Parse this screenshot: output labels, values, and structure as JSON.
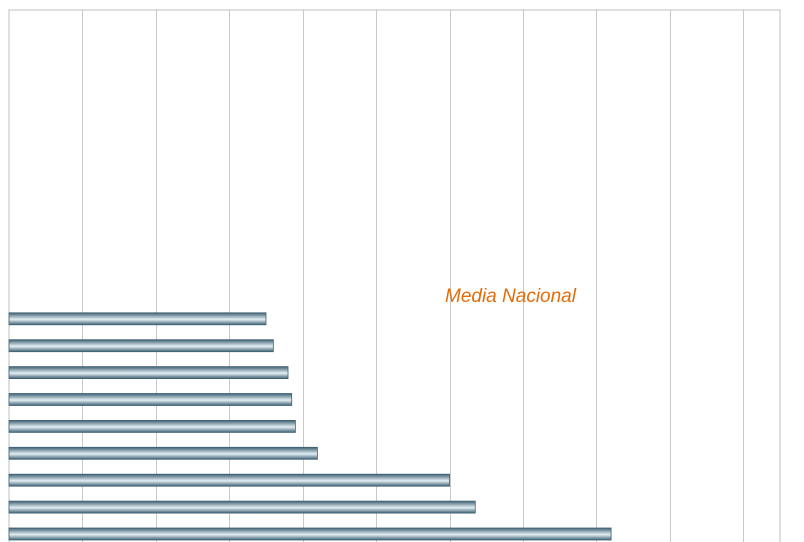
{
  "chart_data": {
    "type": "bar",
    "orientation": "horizontal",
    "title": "",
    "xlabel": "",
    "ylabel": "",
    "xlim": [
      0,
      10.5
    ],
    "grid": true,
    "legend": "none",
    "values": [
      8.2,
      6.35,
      6.0,
      4.2,
      3.9,
      3.85,
      3.8,
      3.6,
      3.5
    ],
    "annotation": {
      "text": "Media Nacional",
      "color": "#e36c0a"
    },
    "colors": {
      "bar_dark": "#3f6274",
      "bar_light": "#e3eef3",
      "grid": "#c8c8c8",
      "frame": "#bfbfbf"
    }
  }
}
